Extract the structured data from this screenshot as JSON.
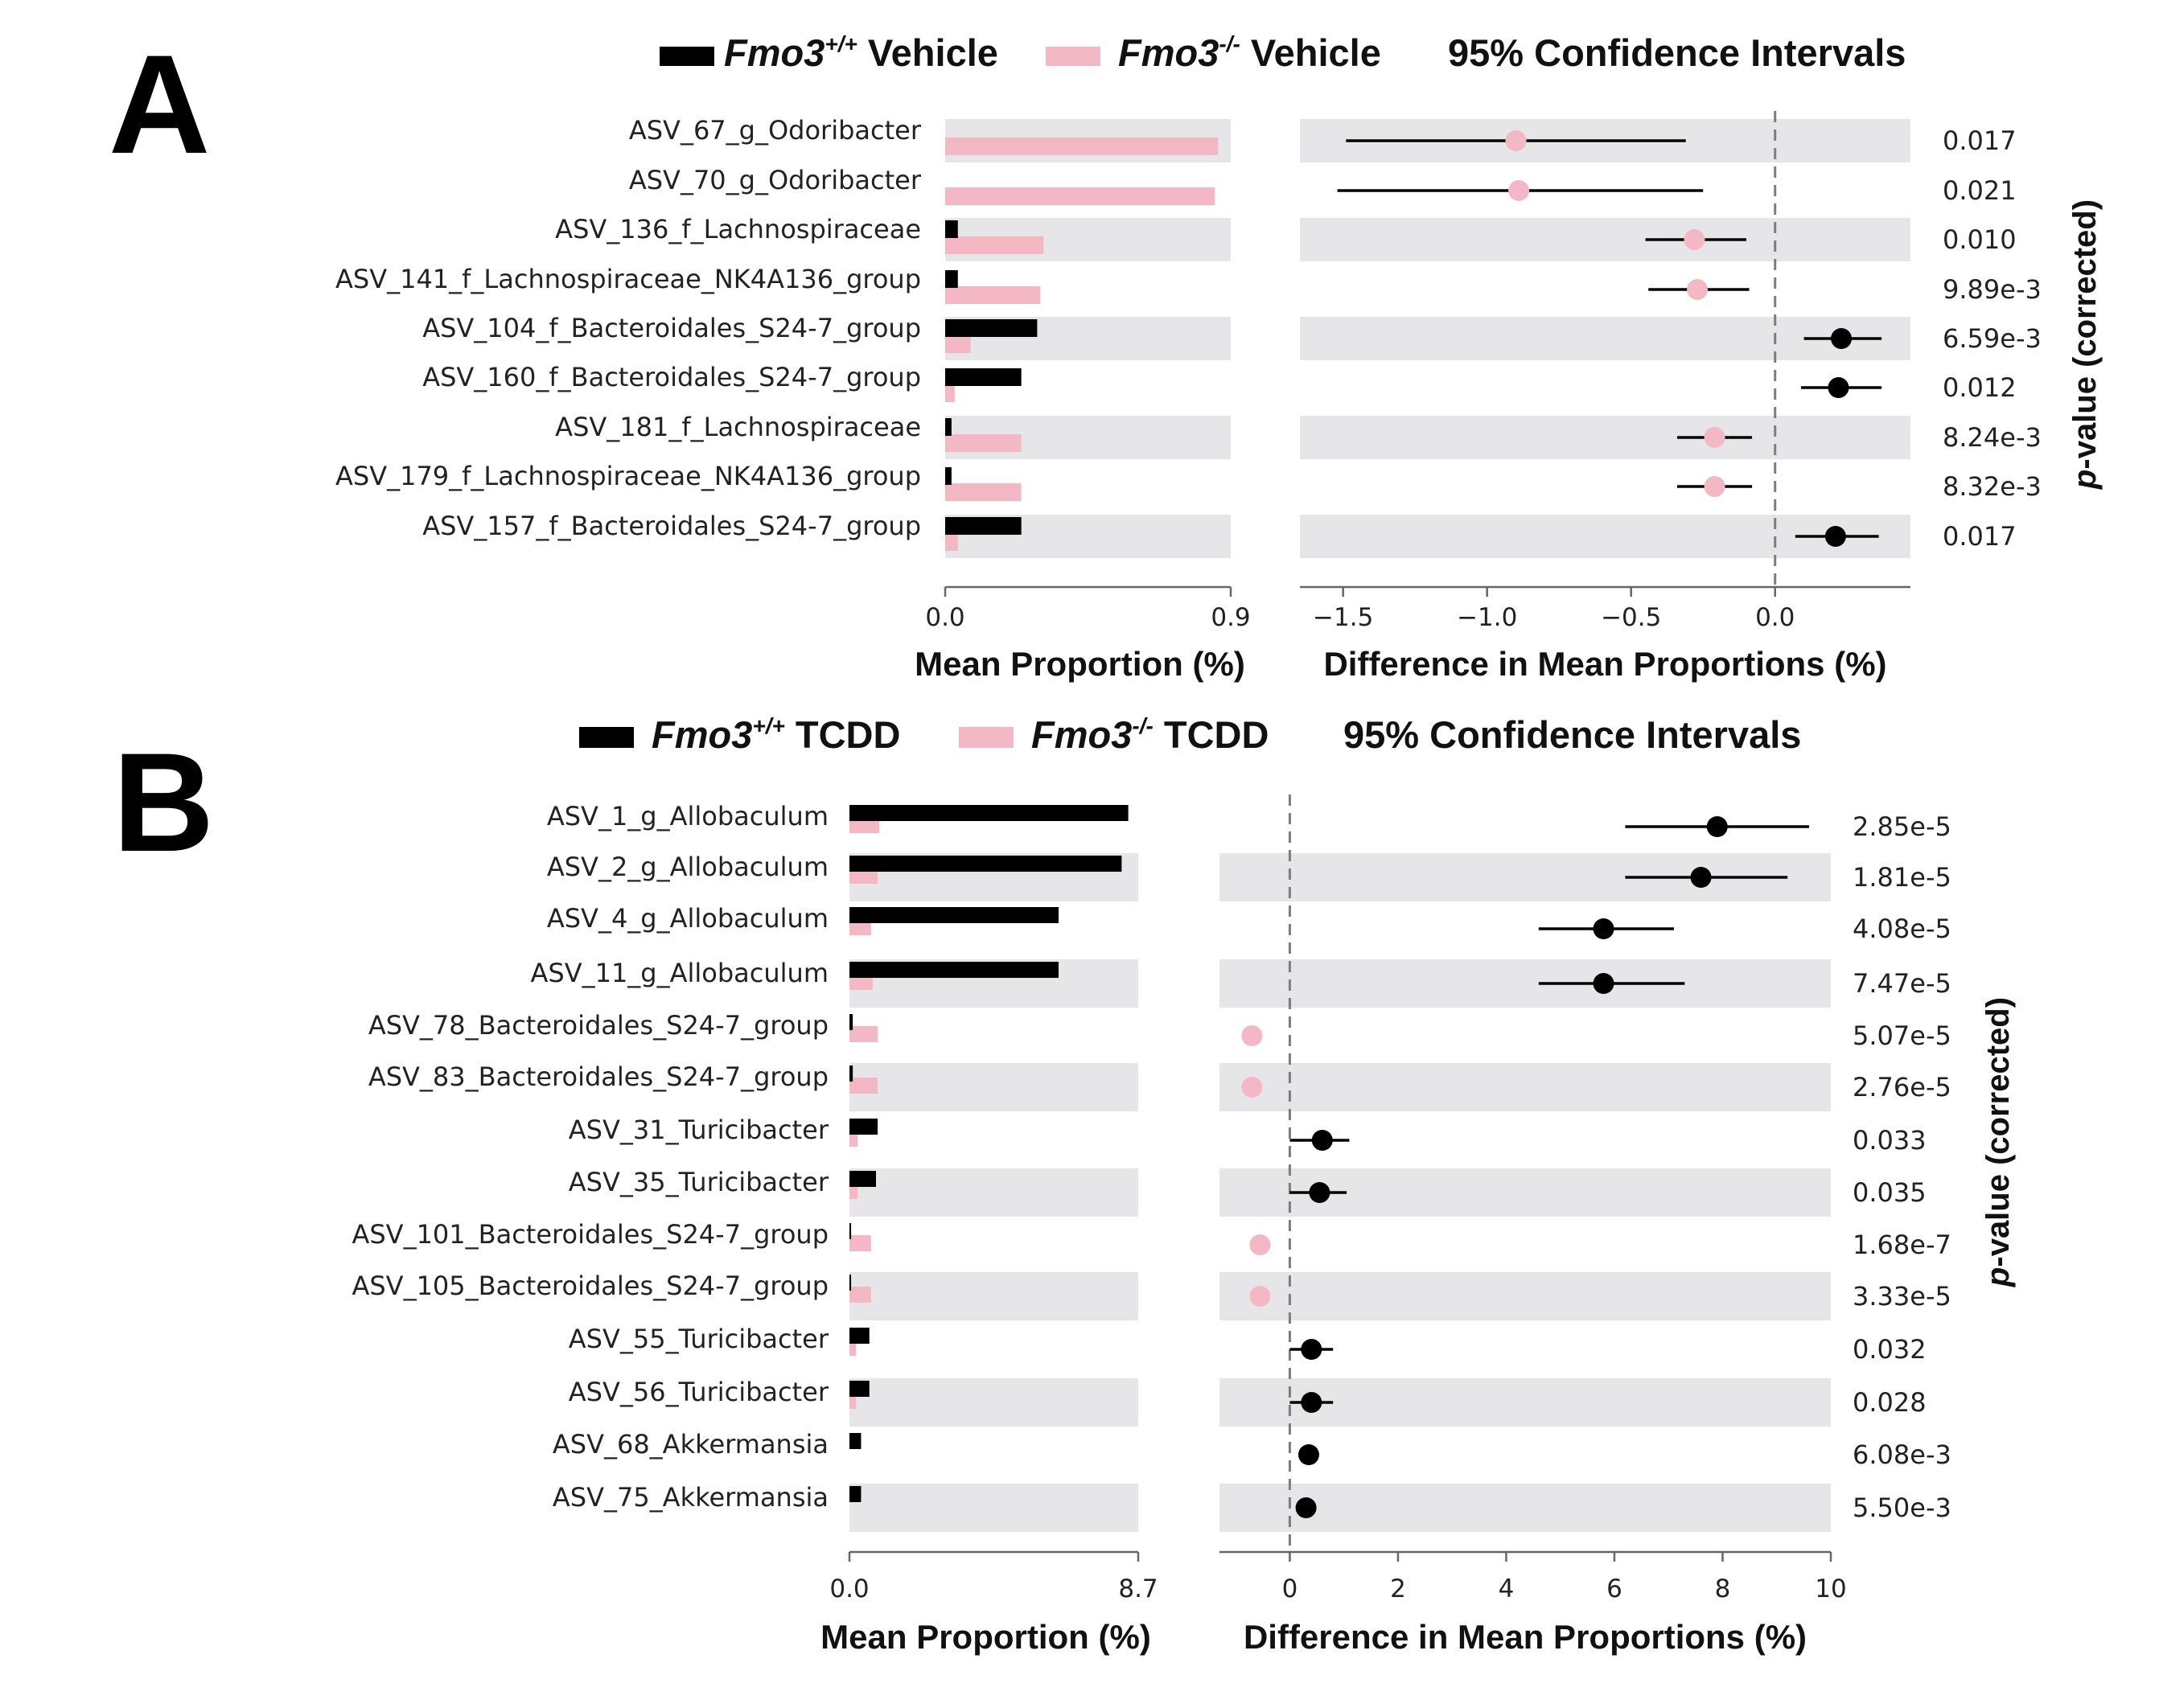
{
  "chart_data": [
    {
      "panel": "A",
      "type": "bar",
      "legend": {
        "series1": {
          "italic": "Fmo3",
          "sup": "+/+",
          "suffix": " Vehicle",
          "color": "#000000"
        },
        "series2": {
          "italic": "Fmo3",
          "sup": "-/-",
          "suffix": " Vehicle",
          "color": "#f4b8c4"
        },
        "ci": "95% Confidence Intervals"
      },
      "categories": [
        "ASV_67_g_Odoribacter",
        "ASV_70_g_Odoribacter",
        "ASV_136_f_Lachnospiraceae",
        "ASV_141_f_Lachnospiraceae_NK4A136_group",
        "ASV_104_f_Bacteroidales_S24-7_group",
        "ASV_160_f_Bacteroidales_S24-7_group",
        "ASV_181_f_Lachnospiraceae",
        "ASV_179_f_Lachnospiraceae_NK4A136_group",
        "ASV_157_f_Bacteroidales_S24-7_group"
      ],
      "series": [
        {
          "name": "Fmo3+/+ Vehicle",
          "values": [
            0.0,
            0.0,
            0.04,
            0.04,
            0.29,
            0.24,
            0.02,
            0.02,
            0.24
          ]
        },
        {
          "name": "Fmo3-/- Vehicle",
          "values": [
            0.86,
            0.85,
            0.31,
            0.3,
            0.08,
            0.03,
            0.24,
            0.24,
            0.04
          ]
        }
      ],
      "difference": {
        "mean": [
          -0.9,
          -0.89,
          -0.28,
          -0.27,
          0.23,
          0.22,
          -0.21,
          -0.21,
          0.21
        ],
        "ci_low": [
          -1.49,
          -1.52,
          -0.45,
          -0.44,
          0.1,
          0.09,
          -0.34,
          -0.34,
          0.07
        ],
        "ci_high": [
          -0.31,
          -0.25,
          -0.1,
          -0.09,
          0.37,
          0.37,
          -0.08,
          -0.08,
          0.36
        ]
      },
      "p_values": [
        "0.017",
        "0.021",
        "0.010",
        "9.89e-3",
        "6.59e-3",
        "0.012",
        "8.24e-3",
        "8.32e-3",
        "0.017"
      ],
      "prop_axis": {
        "range": [
          0.0,
          0.9
        ],
        "ticks": [
          "0.0",
          "0.9"
        ]
      },
      "diff_axis": {
        "range": [
          -1.65,
          0.47
        ],
        "ticks": [
          -1.5,
          -1.0,
          -0.5,
          0.0
        ],
        "tick_labels": [
          "−1.5",
          "−1.0",
          "−0.5",
          "0.0"
        ]
      },
      "xlabel_prop": "Mean Proportion (%)",
      "xlabel_diff": "Difference in Mean Proportions (%)",
      "ylabel_right": "p-value (corrected)"
    },
    {
      "panel": "B",
      "type": "bar",
      "legend": {
        "series1": {
          "italic": "Fmo3",
          "sup": "+/+",
          "suffix": " TCDD",
          "color": "#000000"
        },
        "series2": {
          "italic": "Fmo3",
          "sup": "-/-",
          "suffix": " TCDD",
          "color": "#f4b8c4"
        },
        "ci": "95% Confidence Intervals"
      },
      "categories": [
        "ASV_1_g_Allobaculum",
        "ASV_2_g_Allobaculum",
        "ASV_4_g_Allobaculum",
        "ASV_11_g_Allobaculum",
        "ASV_78_Bacteroidales_S24-7_group",
        "ASV_83_Bacteroidales_S24-7_group",
        "ASV_31_Turicibacter",
        "ASV_35_Turicibacter",
        "ASV_101_Bacteroidales_S24-7_group",
        "ASV_105_Bacteroidales_S24-7_group",
        "ASV_55_Turicibacter",
        "ASV_56_Turicibacter",
        "ASV_68_Akkermansia",
        "ASV_75_Akkermansia"
      ],
      "series": [
        {
          "name": "Fmo3+/+ TCDD",
          "values": [
            8.4,
            8.2,
            6.3,
            6.3,
            0.1,
            0.1,
            0.85,
            0.8,
            0.05,
            0.05,
            0.6,
            0.6,
            0.35,
            0.35
          ]
        },
        {
          "name": "Fmo3-/- TCDD",
          "values": [
            0.9,
            0.85,
            0.65,
            0.7,
            0.85,
            0.85,
            0.25,
            0.25,
            0.65,
            0.65,
            0.2,
            0.2,
            0.0,
            0.0
          ]
        }
      ],
      "difference": {
        "mean": [
          7.9,
          7.6,
          5.8,
          5.8,
          -0.7,
          -0.7,
          0.6,
          0.55,
          -0.55,
          -0.55,
          0.4,
          0.4,
          0.35,
          0.3
        ],
        "ci_low": [
          6.2,
          6.2,
          4.6,
          4.6,
          -0.7,
          -0.7,
          0.0,
          0.0,
          -0.55,
          -0.55,
          0.0,
          0.0,
          0.35,
          0.3
        ],
        "ci_high": [
          9.6,
          9.2,
          7.1,
          7.3,
          -0.7,
          -0.7,
          1.1,
          1.05,
          -0.55,
          -0.55,
          0.8,
          0.8,
          0.35,
          0.3
        ]
      },
      "p_values": [
        "2.85e-5",
        "1.81e-5",
        "4.08e-5",
        "7.47e-5",
        "5.07e-5",
        "2.76e-5",
        "0.033",
        "0.035",
        "1.68e-7",
        "3.33e-5",
        "0.032",
        "0.028",
        "6.08e-3",
        "5.50e-3"
      ],
      "prop_axis": {
        "range": [
          0.0,
          8.7
        ],
        "ticks": [
          "0.0",
          "8.7"
        ]
      },
      "diff_axis": {
        "range": [
          -1.3,
          10.0
        ],
        "ticks": [
          0,
          2,
          4,
          6,
          8,
          10
        ],
        "tick_labels": [
          "0",
          "2",
          "4",
          "6",
          "8",
          "10"
        ]
      },
      "xlabel_prop": "Mean Proportion (%)",
      "xlabel_diff": "Difference in Mean Proportions (%)",
      "ylabel_right": "p-value (corrected)"
    }
  ],
  "colors": {
    "black": "#000000",
    "pink": "#f4b8c4",
    "shade": "#e6e6e8",
    "axis": "#666666",
    "dash": "#7d7d7d"
  }
}
